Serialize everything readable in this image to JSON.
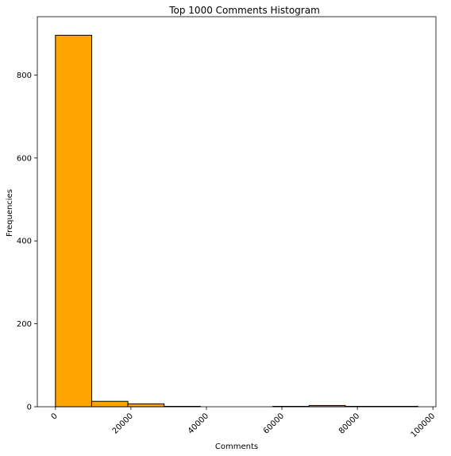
{
  "chart_data": {
    "type": "bar",
    "title": "Top 1000 Comments Histogram",
    "xlabel": "Comments",
    "ylabel": "Frequencies",
    "bin_edges": [
      0,
      9600,
      19200,
      28800,
      38400,
      48000,
      57600,
      67200,
      76800,
      86400,
      96000
    ],
    "counts": [
      896,
      13,
      7,
      1,
      0,
      0,
      1,
      3,
      1,
      1
    ],
    "xlim": [
      -4800,
      100800
    ],
    "ylim": [
      0,
      940.8
    ],
    "xticks": [
      0,
      20000,
      40000,
      60000,
      80000,
      100000
    ],
    "xtick_labels": [
      "0",
      "20000",
      "40000",
      "60000",
      "80000",
      "100000"
    ],
    "yticks": [
      0,
      200,
      400,
      600,
      800
    ],
    "ytick_labels": [
      "0",
      "200",
      "400",
      "600",
      "800"
    ],
    "x_tick_rotation_deg": 45,
    "grid": false,
    "bar_color": "#ffa500",
    "edge_color": "#000000"
  }
}
